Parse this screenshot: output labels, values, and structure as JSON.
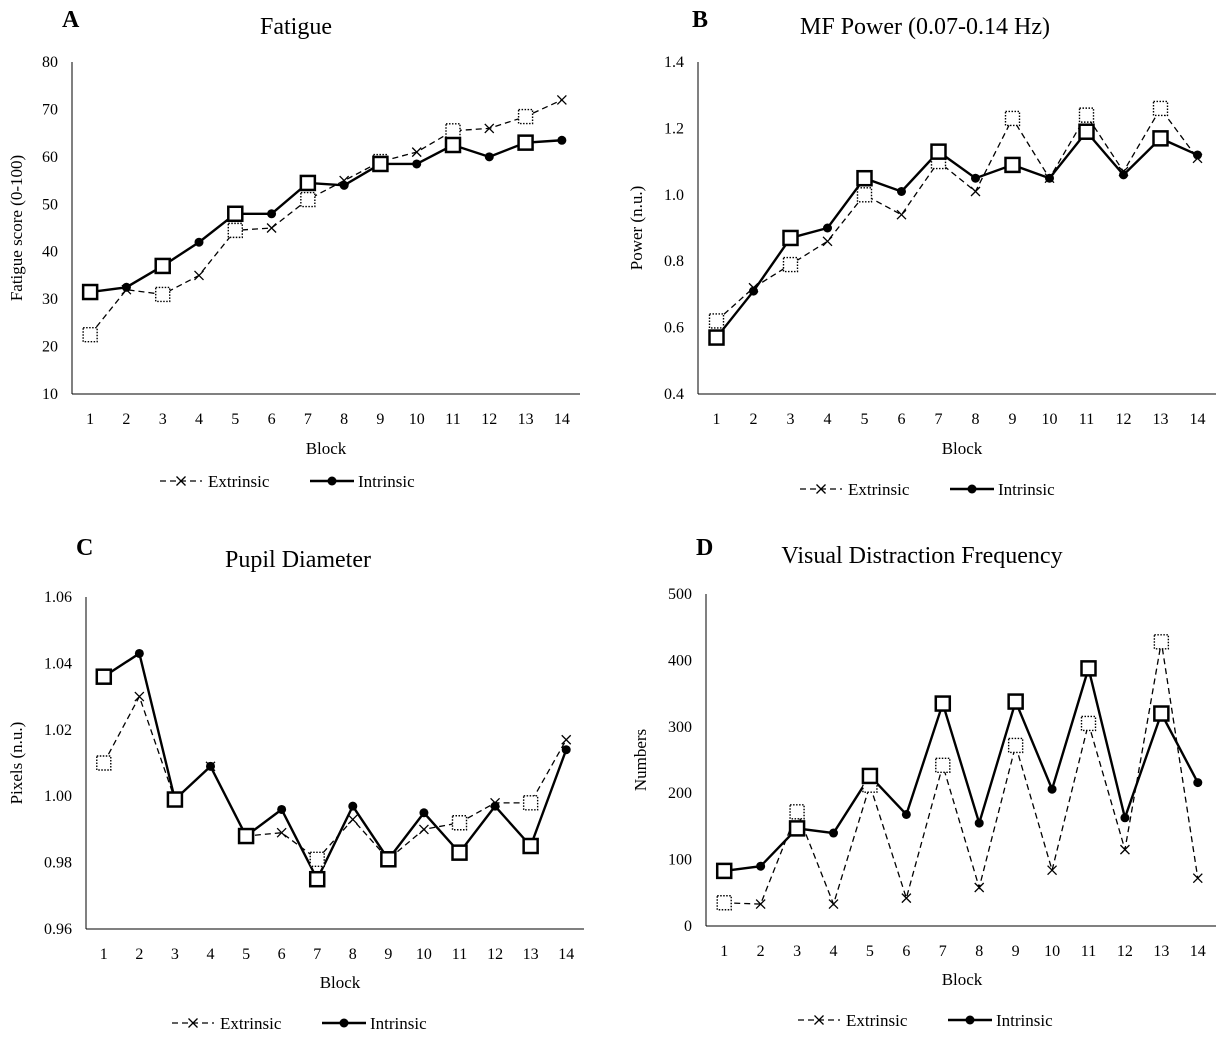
{
  "chart_data": [
    {
      "panel_letter": "A",
      "type": "line",
      "title": "Fatigue",
      "xlabel": "Block",
      "ylabel": "Fatigue score (0-100)",
      "ylim": [
        10,
        80
      ],
      "yticks": [
        10,
        20,
        30,
        40,
        50,
        60,
        70,
        80
      ],
      "x": [
        1,
        2,
        3,
        4,
        5,
        6,
        7,
        8,
        9,
        10,
        11,
        12,
        13,
        14
      ],
      "x_tick_labels": [
        "1",
        "2",
        "3",
        "4",
        "5",
        "6",
        "7",
        "8",
        "9",
        "10",
        "11",
        "12",
        "13",
        "14"
      ],
      "grid": false,
      "legend_position": "bottom",
      "series": [
        {
          "name": "Extrinsic",
          "style": "dashed",
          "marker": "x",
          "values": [
            22.5,
            32,
            31,
            35,
            44.5,
            45,
            51,
            55,
            59,
            61,
            65.5,
            66,
            68.5,
            72
          ],
          "open_square_blocks": [
            1,
            3,
            5,
            7,
            9,
            11,
            13
          ]
        },
        {
          "name": "Intrinsic",
          "style": "solid",
          "marker": "dot",
          "values": [
            31.5,
            32.5,
            37,
            42,
            48,
            48,
            54.5,
            54,
            58.5,
            58.5,
            62.5,
            60,
            63,
            63.5
          ],
          "open_square_blocks": [
            1,
            3,
            5,
            7,
            9,
            11,
            13
          ]
        }
      ]
    },
    {
      "panel_letter": "B",
      "type": "line",
      "title": "MF Power (0.07-0.14 Hz)",
      "xlabel": "Block",
      "ylabel": "Power (n.u.)",
      "ylim": [
        0.4,
        1.4
      ],
      "yticks": [
        0.4,
        0.6,
        0.8,
        1.0,
        1.2,
        1.4
      ],
      "ytick_labels": [
        "0.4",
        "0.6",
        "0.8",
        "1.0",
        "1.2",
        "1.4"
      ],
      "x": [
        1,
        2,
        3,
        4,
        5,
        6,
        7,
        8,
        9,
        10,
        11,
        12,
        13,
        14
      ],
      "x_tick_labels": [
        "1",
        "2",
        "3",
        "4",
        "5",
        "6",
        "7",
        "8",
        "9",
        "10",
        "11",
        "12",
        "13",
        "14"
      ],
      "grid": false,
      "legend_position": "bottom",
      "series": [
        {
          "name": "Extrinsic",
          "style": "dashed",
          "marker": "x",
          "values": [
            0.62,
            0.72,
            0.79,
            0.86,
            1.0,
            0.94,
            1.1,
            1.01,
            1.23,
            1.05,
            1.24,
            1.07,
            1.26,
            1.11
          ],
          "open_square_blocks": [
            1,
            3,
            5,
            7,
            9,
            11,
            13
          ]
        },
        {
          "name": "Intrinsic",
          "style": "solid",
          "marker": "dot",
          "values": [
            0.57,
            0.71,
            0.87,
            0.9,
            1.05,
            1.01,
            1.13,
            1.05,
            1.09,
            1.05,
            1.19,
            1.06,
            1.17,
            1.12
          ],
          "open_square_blocks": [
            1,
            3,
            5,
            7,
            9,
            11,
            13
          ]
        }
      ]
    },
    {
      "panel_letter": "C",
      "type": "line",
      "title": "Pupil Diameter",
      "xlabel": "Block",
      "ylabel": "Pixels (n.u.)",
      "ylim": [
        0.96,
        1.06
      ],
      "yticks": [
        0.96,
        0.98,
        1.0,
        1.02,
        1.04,
        1.06
      ],
      "ytick_labels": [
        "0.96",
        "0.98",
        "1.00",
        "1.02",
        "1.04",
        "1.06"
      ],
      "x": [
        1,
        2,
        3,
        4,
        5,
        6,
        7,
        8,
        9,
        10,
        11,
        12,
        13,
        14
      ],
      "x_tick_labels": [
        "1",
        "2",
        "3",
        "4",
        "5",
        "6",
        "7",
        "8",
        "9",
        "10",
        "11",
        "12",
        "13",
        "14"
      ],
      "grid": false,
      "legend_position": "bottom",
      "series": [
        {
          "name": "Extrinsic",
          "style": "dashed",
          "marker": "x",
          "values": [
            1.01,
            1.03,
            0.999,
            1.009,
            0.988,
            0.989,
            0.981,
            0.993,
            0.981,
            0.99,
            0.992,
            0.998,
            0.998,
            1.017
          ],
          "open_square_blocks": [
            1,
            3,
            5,
            7,
            9,
            11,
            13
          ]
        },
        {
          "name": "Intrinsic",
          "style": "solid",
          "marker": "dot",
          "values": [
            1.036,
            1.043,
            0.999,
            1.009,
            0.988,
            0.996,
            0.975,
            0.997,
            0.981,
            0.995,
            0.983,
            0.997,
            0.985,
            1.014
          ],
          "open_square_blocks": [
            1,
            3,
            5,
            7,
            9,
            11,
            13
          ]
        }
      ]
    },
    {
      "panel_letter": "D",
      "type": "line",
      "title": "Visual Distraction Frequency",
      "xlabel": "Block",
      "ylabel": "Numbers",
      "ylim": [
        0,
        500
      ],
      "yticks": [
        0,
        100,
        200,
        300,
        400,
        500
      ],
      "x": [
        1,
        2,
        3,
        4,
        5,
        6,
        7,
        8,
        9,
        10,
        11,
        12,
        13,
        14
      ],
      "x_tick_labels": [
        "1",
        "2",
        "3",
        "4",
        "5",
        "6",
        "7",
        "8",
        "9",
        "10",
        "11",
        "12",
        "13",
        "14"
      ],
      "grid": false,
      "legend_position": "bottom",
      "series": [
        {
          "name": "Extrinsic",
          "style": "dashed",
          "marker": "x",
          "values": [
            35,
            33,
            172,
            33,
            212,
            42,
            242,
            58,
            272,
            84,
            305,
            115,
            428,
            72
          ],
          "open_square_blocks": [
            1,
            3,
            5,
            7,
            9,
            11,
            13
          ]
        },
        {
          "name": "Intrinsic",
          "style": "solid",
          "marker": "dot",
          "values": [
            83,
            90,
            147,
            140,
            226,
            168,
            335,
            155,
            338,
            206,
            388,
            163,
            320,
            216
          ],
          "open_square_blocks": [
            1,
            3,
            5,
            7,
            9,
            11,
            13
          ]
        }
      ]
    }
  ]
}
